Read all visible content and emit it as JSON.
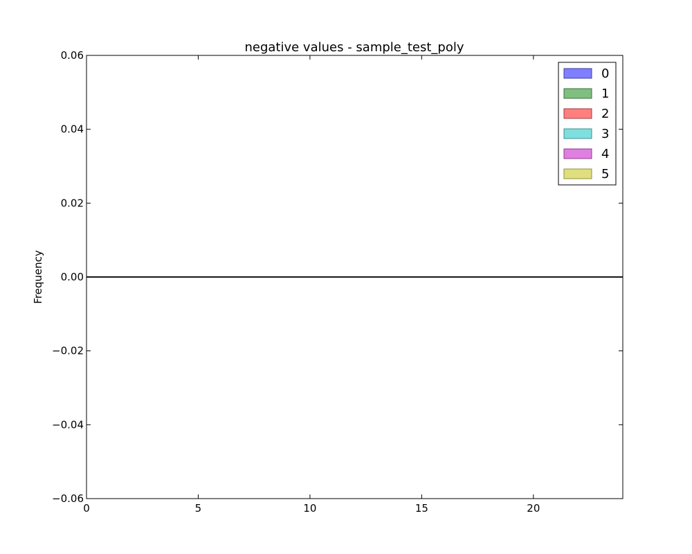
{
  "chart_data": {
    "type": "area",
    "title": "negative values - sample_test_poly",
    "xlabel": "",
    "ylabel": "Frequency",
    "xlim": [
      0,
      24
    ],
    "ylim": [
      -0.06,
      0.06
    ],
    "x_ticks": [
      0,
      5,
      10,
      15,
      20
    ],
    "y_ticks": [
      0.06,
      0.04,
      0.02,
      0.0,
      -0.02,
      -0.04,
      -0.06
    ],
    "y_tick_labels": [
      "0.06",
      "0.04",
      "0.02",
      "0.00",
      "−0.02",
      "−0.04",
      "−0.06"
    ],
    "grid": false,
    "legend_position": "top-right",
    "series": [
      {
        "name": "0",
        "color": "#7f7fff",
        "edge": "#3f3f9f",
        "values": [
          0,
          0
        ]
      },
      {
        "name": "1",
        "color": "#7fbf7f",
        "edge": "#3f6f3f",
        "values": [
          0,
          0
        ]
      },
      {
        "name": "2",
        "color": "#ff7f7f",
        "edge": "#9f3f3f",
        "values": [
          0,
          0
        ]
      },
      {
        "name": "3",
        "color": "#7fdfdf",
        "edge": "#3f8f8f",
        "values": [
          0,
          0
        ]
      },
      {
        "name": "4",
        "color": "#df7fdf",
        "edge": "#8f3f8f",
        "values": [
          0,
          0
        ]
      },
      {
        "name": "5",
        "color": "#dfdf7f",
        "edge": "#8f8f3f",
        "values": [
          0,
          0
        ]
      }
    ],
    "x": [
      0,
      24
    ]
  }
}
